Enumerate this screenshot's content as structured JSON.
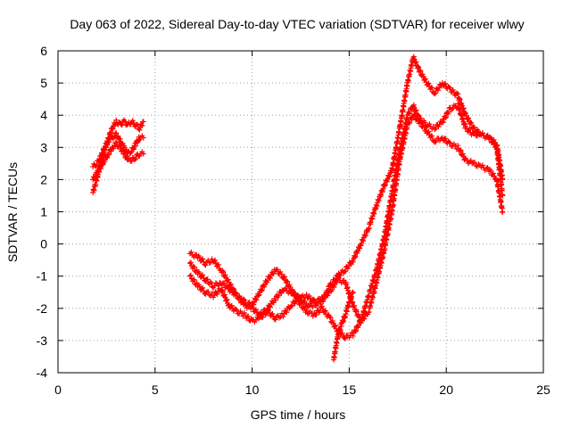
{
  "chart_data": {
    "type": "scatter",
    "title": "Day 063 of 2022, Sidereal Day-to-day VTEC variation (SDTVAR) for receiver wlwy",
    "xlabel": "GPS time / hours",
    "ylabel": "SDTVAR / TECUs",
    "xlim": [
      0,
      25
    ],
    "ylim": [
      -4,
      6
    ],
    "xticks": [
      0,
      5,
      10,
      15,
      20,
      25
    ],
    "yticks": [
      -4,
      -3,
      -2,
      -1,
      0,
      1,
      2,
      3,
      4,
      5,
      6
    ],
    "grid": true,
    "marker": "+",
    "series": [
      {
        "name": "SDTVAR",
        "color": "#ff0000",
        "tracks": [
          {
            "x": [
              1.8,
              2.0,
              2.2,
              2.4,
              2.6,
              2.8,
              3.0,
              3.2,
              3.4,
              3.6,
              3.8,
              4.0,
              4.2,
              4.4
            ],
            "y": [
              1.6,
              2.0,
              2.5,
              2.9,
              3.3,
              3.6,
              3.8,
              3.7,
              3.8,
              3.7,
              3.8,
              3.7,
              3.6,
              3.8
            ]
          },
          {
            "x": [
              1.8,
              2.0,
              2.2,
              2.4,
              2.6,
              2.8,
              3.0,
              3.2,
              3.4,
              3.6,
              3.8,
              4.0,
              4.2,
              4.4
            ],
            "y": [
              2.4,
              2.5,
              2.7,
              3.0,
              3.2,
              3.3,
              3.4,
              3.2,
              3.0,
              2.8,
              2.9,
              3.1,
              3.3,
              3.3
            ]
          },
          {
            "x": [
              1.8,
              2.0,
              2.2,
              2.4,
              2.6,
              2.8,
              3.0,
              3.2,
              3.4,
              3.6,
              3.8,
              4.0,
              4.2,
              4.4
            ],
            "y": [
              2.0,
              2.2,
              2.4,
              2.6,
              2.8,
              3.0,
              3.1,
              3.0,
              2.8,
              2.6,
              2.6,
              2.7,
              2.8,
              2.8
            ]
          },
          {
            "x": [
              6.8,
              7.2,
              7.6,
              8.0,
              8.4,
              8.8,
              9.2,
              9.6,
              10.0,
              10.4,
              10.8,
              11.2,
              11.6,
              12.0,
              12.4,
              12.8,
              13.2,
              13.6,
              14.0,
              14.4,
              14.8,
              15.2,
              15.6,
              16.0,
              16.4,
              16.8,
              17.2,
              17.6,
              18.0,
              18.3,
              18.6,
              19.0,
              19.4,
              19.8,
              20.2,
              20.6,
              21.0,
              21.4,
              21.8,
              22.2,
              22.6,
              22.9
            ],
            "y": [
              -0.3,
              -0.4,
              -0.6,
              -0.5,
              -0.8,
              -1.2,
              -1.6,
              -1.9,
              -2.0,
              -2.2,
              -2.0,
              -1.7,
              -1.4,
              -1.5,
              -1.6,
              -1.9,
              -1.9,
              -1.8,
              -1.3,
              -1.0,
              -0.8,
              -0.5,
              0.0,
              0.5,
              1.2,
              1.8,
              2.3,
              3.6,
              5.0,
              5.8,
              5.4,
              5.0,
              4.7,
              5.0,
              4.8,
              4.6,
              4.0,
              3.6,
              3.4,
              3.3,
              3.0,
              1.5
            ]
          },
          {
            "x": [
              6.8,
              7.2,
              7.6,
              8.0,
              8.4,
              8.8,
              9.2,
              9.6,
              10.0,
              10.4,
              10.8,
              11.2,
              11.6,
              12.0,
              12.4,
              12.8,
              13.2,
              13.6,
              14.0,
              14.4,
              14.8,
              15.2,
              15.6,
              16.0,
              16.4,
              16.8,
              17.2,
              17.6,
              18.0,
              18.3,
              18.6,
              19.0,
              19.4,
              19.8,
              20.2,
              20.6,
              21.0,
              21.4,
              21.8,
              22.2,
              22.6,
              22.9
            ],
            "y": [
              -0.6,
              -0.9,
              -1.1,
              -1.3,
              -1.2,
              -1.4,
              -1.6,
              -1.8,
              -1.9,
              -1.5,
              -1.1,
              -0.8,
              -1.0,
              -1.4,
              -1.8,
              -2.1,
              -2.2,
              -2.0,
              -2.3,
              -2.7,
              -2.9,
              -2.8,
              -2.4,
              -1.6,
              -0.8,
              0.2,
              1.6,
              2.9,
              4.0,
              4.3,
              3.9,
              3.7,
              3.6,
              3.8,
              4.2,
              4.3,
              3.6,
              3.4,
              3.4,
              3.3,
              3.1,
              2.0
            ]
          },
          {
            "x": [
              6.8,
              7.2,
              7.6,
              8.0,
              8.4,
              8.8,
              9.2,
              9.6,
              10.0,
              10.4,
              10.8,
              11.2,
              11.6,
              12.0,
              12.4,
              12.8,
              13.2,
              13.6,
              14.0,
              14.4,
              14.8,
              15.2,
              15.6,
              16.0,
              16.4,
              16.8,
              17.2,
              17.6,
              18.0,
              18.3,
              18.6,
              19.0,
              19.4,
              19.8,
              20.2,
              20.6,
              21.0,
              21.4,
              21.8,
              22.2,
              22.6,
              22.9
            ],
            "y": [
              -1.0,
              -1.3,
              -1.5,
              -1.6,
              -1.4,
              -1.9,
              -2.1,
              -2.2,
              -2.4,
              -2.3,
              -2.1,
              -2.3,
              -2.2,
              -1.9,
              -1.7,
              -1.6,
              -1.8,
              -1.7,
              -1.5,
              -1.1,
              -1.2,
              -1.9,
              -2.4,
              -2.1,
              -1.2,
              -0.2,
              1.0,
              2.6,
              3.7,
              4.0,
              3.8,
              3.5,
              3.2,
              3.3,
              3.1,
              3.0,
              2.6,
              2.5,
              2.4,
              2.3,
              2.0,
              1.0
            ]
          },
          {
            "x": [
              14.2,
              14.4,
              14.6,
              14.8,
              15.0,
              15.2
            ],
            "y": [
              -3.6,
              -2.9,
              -2.5,
              -2.2,
              -1.8,
              -1.5
            ]
          }
        ]
      }
    ]
  }
}
